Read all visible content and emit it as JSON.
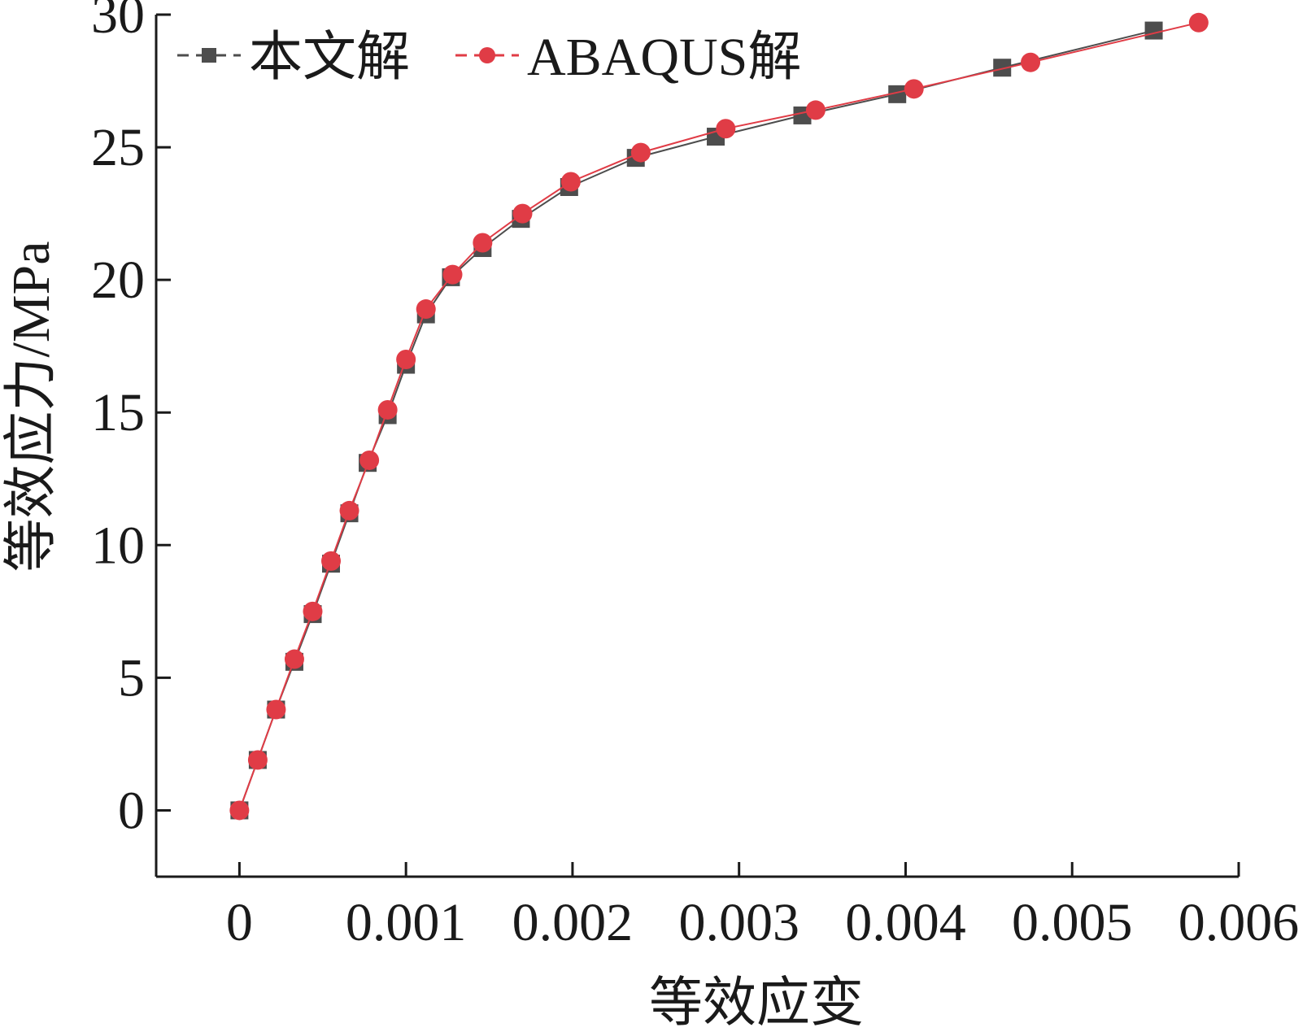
{
  "chart_data": {
    "type": "line",
    "title": "",
    "xlabel": "等效应变",
    "ylabel": "等效应力/MPa",
    "xlim": [
      -0.0005,
      0.006
    ],
    "ylim": [
      -2.5,
      30
    ],
    "x_ticks": [
      0,
      0.001,
      0.002,
      0.003,
      0.004,
      0.005,
      0.006
    ],
    "x_tick_labels": [
      "0",
      "0.001",
      "0.002",
      "0.003",
      "0.004",
      "0.005",
      "0.006"
    ],
    "y_ticks": [
      0,
      5,
      10,
      15,
      20,
      25,
      30
    ],
    "y_tick_labels": [
      "0",
      "5",
      "10",
      "15",
      "20",
      "25",
      "30"
    ],
    "grid": false,
    "legend_position": "top-left",
    "series": [
      {
        "name": "本文解",
        "color": "#4d4d4d",
        "marker": "square",
        "x": [
          0,
          0.00011,
          0.00022,
          0.00033,
          0.00044,
          0.00055,
          0.00066,
          0.00077,
          0.00089,
          0.001,
          0.00112,
          0.00127,
          0.00146,
          0.00169,
          0.00198,
          0.00238,
          0.00286,
          0.00338,
          0.00395,
          0.00458,
          0.00549
        ],
        "y": [
          0,
          1.9,
          3.8,
          5.6,
          7.4,
          9.3,
          11.2,
          13.1,
          14.9,
          16.8,
          18.7,
          20.1,
          21.2,
          22.3,
          23.5,
          24.6,
          25.4,
          26.2,
          27.0,
          28.0,
          29.4
        ]
      },
      {
        "name": "ABAQUS解",
        "color": "#e03c46",
        "marker": "circle",
        "x": [
          0,
          0.00011,
          0.00022,
          0.00033,
          0.00044,
          0.00055,
          0.00066,
          0.00078,
          0.00089,
          0.001,
          0.00112,
          0.00128,
          0.00146,
          0.0017,
          0.00199,
          0.00241,
          0.00292,
          0.00346,
          0.00405,
          0.00475,
          0.00576
        ],
        "y": [
          0,
          1.9,
          3.8,
          5.7,
          7.5,
          9.4,
          11.3,
          13.2,
          15.1,
          17.0,
          18.9,
          20.2,
          21.4,
          22.5,
          23.7,
          24.8,
          25.7,
          26.4,
          27.2,
          28.2,
          29.7
        ]
      }
    ]
  }
}
